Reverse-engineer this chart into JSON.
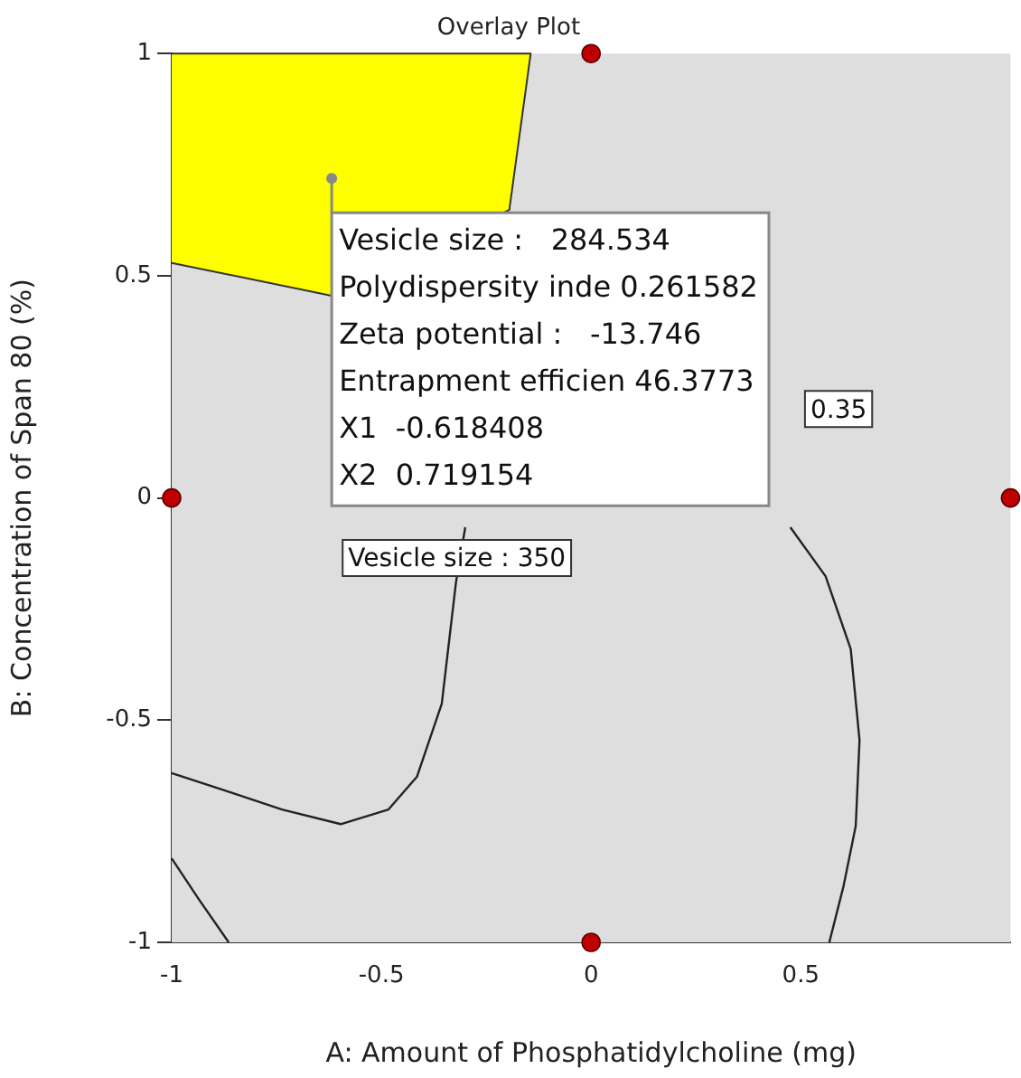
{
  "chart_data": {
    "type": "scatter",
    "title": "Overlay Plot",
    "xlabel": "A: Amount of Phosphatidylcholine (mg)",
    "ylabel": "B: Concentration of Span 80 (%)",
    "xlim": [
      -1,
      1
    ],
    "ylim": [
      -1,
      1
    ],
    "xticks": [
      -1,
      -0.5,
      0,
      0.5,
      {
        "value": 1,
        "label": null
      }
    ],
    "yticks": [
      -1,
      -0.5,
      0,
      0.5,
      1
    ],
    "grid": false,
    "legend": false,
    "series": [
      {
        "type": "area",
        "color": "#ffff00",
        "x": [
          -1,
          -0.144,
          -0.195,
          -0.619,
          -1
        ],
        "values": [
          1,
          1,
          0.648,
          0.455,
          0.529
        ]
      },
      {
        "type": "line",
        "color": "#222222",
        "x": [
          -0.3,
          -0.322,
          -0.356,
          -0.415,
          -0.483,
          -0.597,
          -0.737,
          -0.881,
          -1
        ],
        "values": [
          -0.066,
          -0.189,
          -0.463,
          -0.627,
          -0.701,
          -0.734,
          -0.701,
          -0.656,
          -0.619
        ]
      },
      {
        "type": "line",
        "color": "#222222",
        "x": [
          -1,
          -0.936,
          -0.864
        ],
        "values": [
          -0.811,
          -0.902,
          -1
        ]
      },
      {
        "type": "line",
        "color": "#222222",
        "x": [
          0.475,
          0.559,
          0.619,
          0.64,
          0.631,
          0.602,
          0.568
        ],
        "values": [
          -0.066,
          -0.176,
          -0.34,
          -0.545,
          -0.738,
          -0.873,
          -1
        ]
      },
      {
        "type": "scatter",
        "color": "#c00000",
        "marker": "circle",
        "x": [
          -1,
          0,
          0,
          1
        ],
        "values": [
          0,
          1,
          -1,
          0
        ]
      }
    ],
    "annotations": [
      {
        "text": "Vesicle size :   284.534\nPolydispersity inde 0.261582\nZeta potential :   -13.746\nEntrapment efficien 46.3773\nX1  -0.618408\nX2  0.719154",
        "x": -0.618408,
        "y": 0.719154
      },
      {
        "text": "0.35",
        "x": 0.59,
        "y": 0.2
      },
      {
        "text": "Vesicle size : 350",
        "x": -0.32,
        "y": -0.135
      }
    ]
  }
}
